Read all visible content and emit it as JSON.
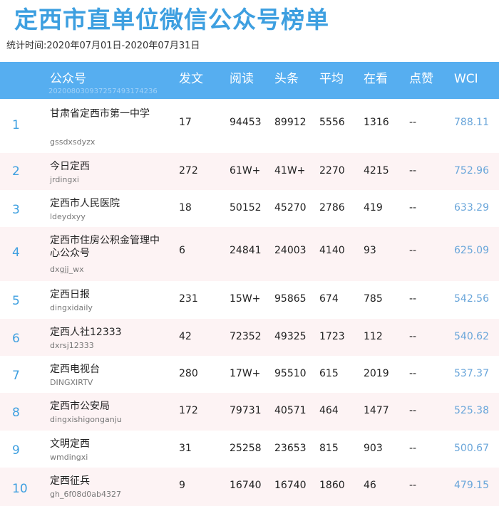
{
  "title": "定西市直单位微信公众号榜单",
  "period": "统计时间:2020年07月01日-2020年07月31日",
  "header": {
    "account": "公众号",
    "posts": "发文",
    "reads": "阅读",
    "top_reads": "头条",
    "average": "平均",
    "watching": "在看",
    "likes": "点赞",
    "wci": "WCI",
    "code": "20200803093725749317423­6"
  },
  "rows": [
    {
      "rank": "1",
      "name": "甘肃省定西市第一中学",
      "handle": "gssdxsdyzx",
      "posts": "17",
      "reads": "94453",
      "top_reads": "89912",
      "average": "5556",
      "watching": "1316",
      "likes": "--",
      "wci": "788.11"
    },
    {
      "rank": "2",
      "name": "今日定西",
      "handle": "jrdingxi",
      "posts": "272",
      "reads": "61W+",
      "top_reads": "41W+",
      "average": "2270",
      "watching": "4215",
      "likes": "--",
      "wci": "752.96"
    },
    {
      "rank": "3",
      "name": "定西市人民医院",
      "handle": "ldeydxyy",
      "posts": "18",
      "reads": "50152",
      "top_reads": "45270",
      "average": "2786",
      "watching": "419",
      "likes": "--",
      "wci": "633.29"
    },
    {
      "rank": "4",
      "name": "定西市住房公积金管理中心公众号",
      "handle": "dxgjj_wx",
      "posts": "6",
      "reads": "24841",
      "top_reads": "24003",
      "average": "4140",
      "watching": "93",
      "likes": "--",
      "wci": "625.09"
    },
    {
      "rank": "5",
      "name": "定西日报",
      "handle": "dingxidaily",
      "posts": "231",
      "reads": "15W+",
      "top_reads": "95865",
      "average": "674",
      "watching": "785",
      "likes": "--",
      "wci": "542.56"
    },
    {
      "rank": "6",
      "name": "定西人社12333",
      "handle": "dxrsj12333",
      "posts": "42",
      "reads": "72352",
      "top_reads": "49325",
      "average": "1723",
      "watching": "112",
      "likes": "--",
      "wci": "540.62"
    },
    {
      "rank": "7",
      "name": "定西电视台",
      "handle": "DINGXIRTV",
      "posts": "280",
      "reads": "17W+",
      "top_reads": "95510",
      "average": "615",
      "watching": "2019",
      "likes": "--",
      "wci": "537.37"
    },
    {
      "rank": "8",
      "name": "定西市公安局",
      "handle": "dingxishigonganju",
      "posts": "172",
      "reads": "79731",
      "top_reads": "40571",
      "average": "464",
      "watching": "1477",
      "likes": "--",
      "wci": "525.38"
    },
    {
      "rank": "9",
      "name": "文明定西",
      "handle": "wmdingxi",
      "posts": "31",
      "reads": "25258",
      "top_reads": "23653",
      "average": "815",
      "watching": "903",
      "likes": "--",
      "wci": "500.67"
    },
    {
      "rank": "10",
      "name": "定西征兵",
      "handle": "gh_6f08d0ab4327",
      "posts": "9",
      "reads": "16740",
      "top_reads": "16740",
      "average": "1860",
      "watching": "46",
      "likes": "--",
      "wci": "479.15"
    }
  ]
}
